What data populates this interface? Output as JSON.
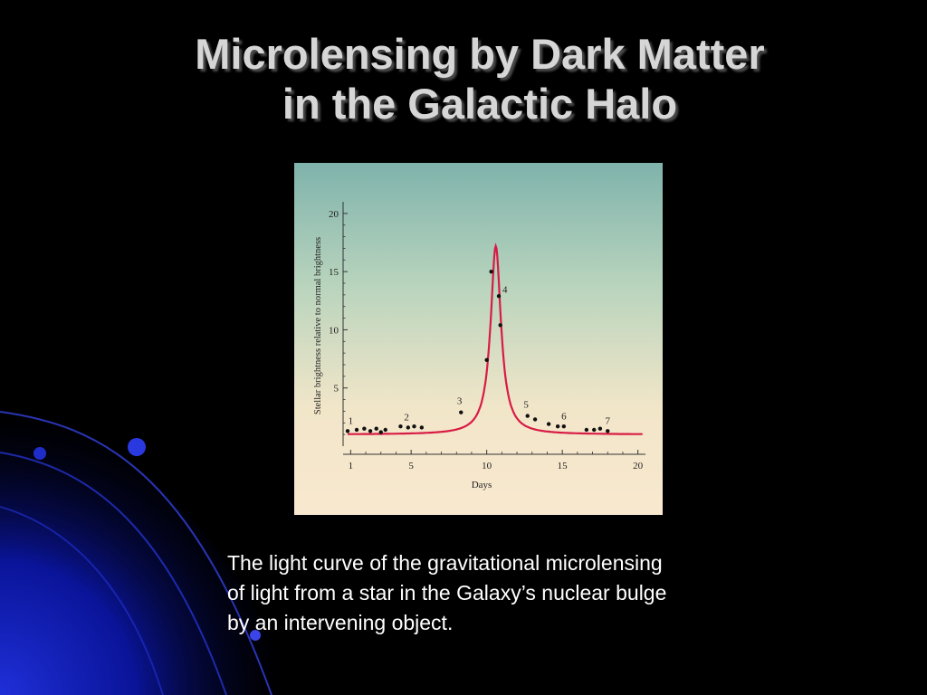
{
  "slide": {
    "title_lines": [
      "Microlensing by Dark Matter",
      "in the Galactic Halo"
    ],
    "caption_lines": [
      "The light curve of the gravitational microlensing",
      "of light from a star in the Galaxy’s nuclear bulge",
      "by an intervening object."
    ]
  },
  "colors": {
    "background": "#000000",
    "title": "#d6d6d6",
    "caption": "#ffffff",
    "curve": "#d81b45",
    "points": "#111111",
    "axis": "#333333",
    "swirl": "#1422c8"
  },
  "chart_data": {
    "type": "line",
    "xlabel": "Days",
    "ylabel": "Stellar brightness relative to normal brightness",
    "xlim": [
      0.5,
      20.5
    ],
    "ylim": [
      0,
      21
    ],
    "x_ticks": [
      1,
      5,
      10,
      15,
      20
    ],
    "y_ticks": [
      5,
      10,
      15,
      20
    ],
    "grid": false,
    "model_curve": {
      "peak_day": 10.6,
      "peak_value": 17.2,
      "baseline": 1.0
    },
    "points": [
      {
        "x": 0.8,
        "y": 1.3
      },
      {
        "x": 1.4,
        "y": 1.4
      },
      {
        "x": 1.9,
        "y": 1.5
      },
      {
        "x": 2.3,
        "y": 1.3
      },
      {
        "x": 2.7,
        "y": 1.5
      },
      {
        "x": 3.0,
        "y": 1.2
      },
      {
        "x": 3.3,
        "y": 1.4
      },
      {
        "x": 4.3,
        "y": 1.7
      },
      {
        "x": 4.8,
        "y": 1.6
      },
      {
        "x": 5.2,
        "y": 1.7
      },
      {
        "x": 5.7,
        "y": 1.6
      },
      {
        "x": 8.3,
        "y": 2.9
      },
      {
        "x": 10.0,
        "y": 7.4
      },
      {
        "x": 10.3,
        "y": 15.0
      },
      {
        "x": 10.8,
        "y": 12.9
      },
      {
        "x": 10.9,
        "y": 10.4
      },
      {
        "x": 12.7,
        "y": 2.6
      },
      {
        "x": 13.2,
        "y": 2.3
      },
      {
        "x": 14.1,
        "y": 1.9
      },
      {
        "x": 14.7,
        "y": 1.7
      },
      {
        "x": 15.1,
        "y": 1.7
      },
      {
        "x": 16.6,
        "y": 1.4
      },
      {
        "x": 17.1,
        "y": 1.4
      },
      {
        "x": 17.5,
        "y": 1.5
      },
      {
        "x": 18.0,
        "y": 1.3
      }
    ],
    "annotations": [
      {
        "text": "1",
        "x": 1.0,
        "y": 1.9
      },
      {
        "text": "2",
        "x": 4.7,
        "y": 2.2
      },
      {
        "text": "3",
        "x": 8.2,
        "y": 3.6
      },
      {
        "text": "4",
        "x": 11.2,
        "y": 13.2
      },
      {
        "text": "5",
        "x": 12.6,
        "y": 3.3
      },
      {
        "text": "6",
        "x": 15.1,
        "y": 2.3
      },
      {
        "text": "7",
        "x": 18.0,
        "y": 1.9
      }
    ]
  }
}
